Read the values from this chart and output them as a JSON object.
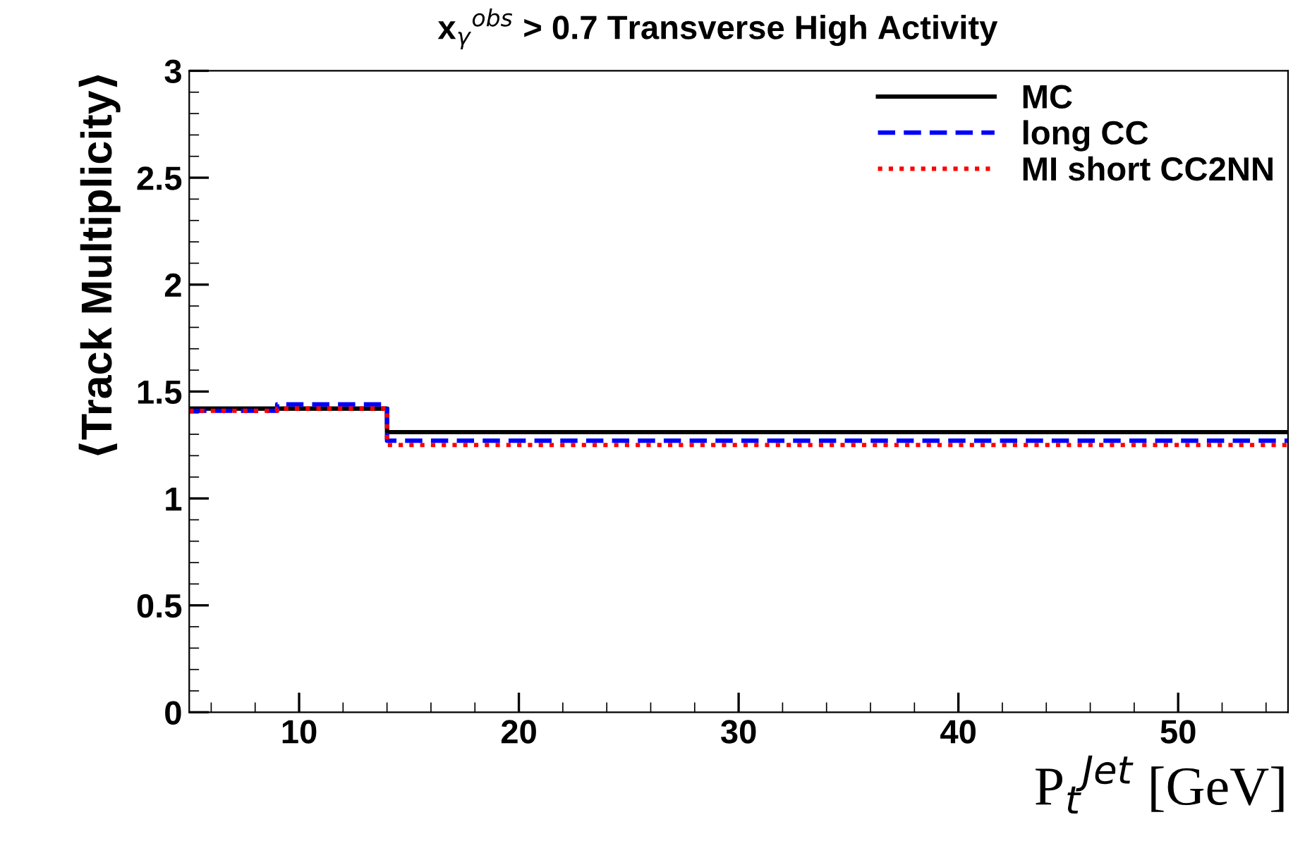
{
  "chart_data": {
    "type": "step",
    "title": "x$_{γ}$$^{obs}$ > 0.7 Transverse High Activity",
    "xlabel": "P$_{t}$$^{Jet}$ [GeV]",
    "ylabel": "⟨Track Multiplicity⟩",
    "x": [
      5,
      9,
      14,
      55
    ],
    "series": [
      {
        "name": "MC",
        "color": "#000000",
        "line_style": "solid",
        "values": [
          1.42,
          1.42,
          1.31,
          1.31
        ]
      },
      {
        "name": "long CC",
        "color": "#0000ff",
        "line_style": "dashed",
        "values": [
          1.41,
          1.44,
          1.27,
          1.27
        ]
      },
      {
        "name": "MI short CC2NN",
        "color": "#ff0000",
        "line_style": "dotted",
        "values": [
          1.41,
          1.42,
          1.25,
          1.25
        ]
      }
    ],
    "xlim": [
      5,
      55
    ],
    "xticks": [
      10,
      20,
      30,
      40,
      50
    ],
    "ylim": [
      0,
      3
    ],
    "yticks": [
      0,
      0.5,
      1,
      1.5,
      2,
      2.5,
      3
    ],
    "grid": false,
    "legend": "top right"
  }
}
